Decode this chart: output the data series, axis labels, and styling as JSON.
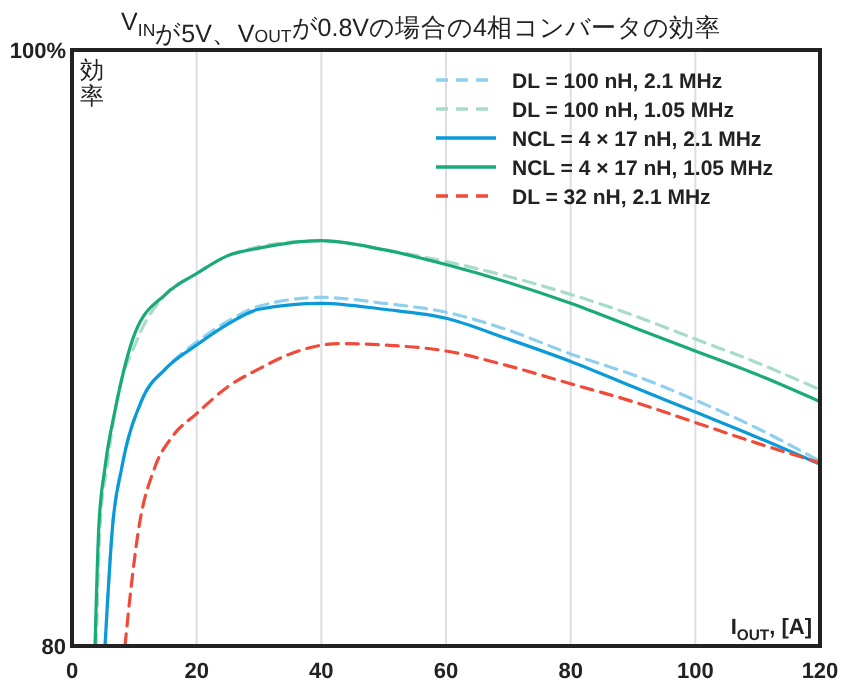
{
  "chart_data": {
    "type": "line",
    "title": "V$_{IN}$が5V、V$_{OUT}$が0.8Vの場合の4相コンバータの効率",
    "xlabel": "I$_{OUT}$, [A]",
    "ylabel": "効率",
    "xlim": [
      0,
      120
    ],
    "xticks": [
      0,
      20,
      40,
      60,
      80,
      100,
      120
    ],
    "ylim": [
      80,
      100
    ],
    "yticks": [
      80,
      {
        "value": 100,
        "label": "100%"
      }
    ],
    "grid": "x",
    "legend": "top right",
    "series": [
      {
        "name": "DL = 100 nH, 2.1 MHz",
        "color": "#8fd0ee",
        "line_style": "dashed",
        "x": [
          5.3,
          6.5,
          8,
          11.2,
          15,
          20,
          25,
          30,
          40,
          50,
          60,
          70,
          80,
          90,
          100,
          110,
          120
        ],
        "values": [
          80,
          84,
          86,
          88.25,
          89.3,
          90.2,
          90.9,
          91.4,
          91.7,
          91.5,
          91.2,
          90.6,
          89.8,
          89.1,
          88.25,
          87.3,
          86.2
        ]
      },
      {
        "name": "DL = 100 nH, 1.05 MHz",
        "color": "#a8dcc8",
        "line_style": "dashed",
        "x": [
          3.9,
          4.5,
          5.6,
          7,
          10.5,
          15,
          20,
          25,
          30,
          40,
          50,
          60,
          70,
          80,
          90,
          100,
          110,
          120
        ],
        "values": [
          80,
          84,
          86,
          88,
          90.3,
          91.8,
          92.5,
          93.1,
          93.4,
          93.6,
          93.3,
          92.9,
          92.4,
          91.8,
          91.1,
          90.3,
          89.5,
          88.6
        ]
      },
      {
        "name": "NCL = 4 × 17 nH, 2.1 MHz",
        "color": "#0a9ad8",
        "line_style": "solid",
        "x": [
          5.3,
          6.5,
          8,
          11.2,
          15,
          20,
          25,
          30,
          40,
          50,
          60,
          70,
          80,
          90,
          100,
          110,
          120
        ],
        "values": [
          80,
          84,
          86,
          88.25,
          89.3,
          90.1,
          90.8,
          91.3,
          91.5,
          91.3,
          91,
          90.3,
          89.55,
          88.7,
          87.85,
          87,
          86.1
        ]
      },
      {
        "name": "NCL = 4 × 17 nH, 1.05 MHz",
        "color": "#1aaa78",
        "line_style": "solid",
        "x": [
          3.7,
          4.3,
          5.3,
          7,
          10.1,
          15,
          20,
          25,
          30,
          40,
          50,
          60,
          70,
          80,
          90,
          100,
          110,
          120
        ],
        "values": [
          80,
          84,
          86,
          88,
          90.5,
          91.8,
          92.5,
          93.1,
          93.35,
          93.6,
          93.3,
          92.8,
          92.2,
          91.5,
          90.7,
          89.9,
          89.1,
          88.2
        ]
      },
      {
        "name": "DL = 32 nH, 2.1 MHz",
        "color": "#f04a3a",
        "line_style": "dashed",
        "x": [
          8.5,
          9.5,
          10.6,
          13.3,
          16,
          20,
          25,
          30,
          35,
          43,
          50,
          60,
          70,
          80,
          90,
          100,
          110,
          120
        ],
        "values": [
          80,
          82,
          83.8,
          86,
          87,
          87.8,
          88.7,
          89.3,
          89.8,
          90.15,
          90.1,
          89.9,
          89.4,
          88.8,
          88.2,
          87.5,
          86.8,
          86.15
        ]
      }
    ]
  }
}
